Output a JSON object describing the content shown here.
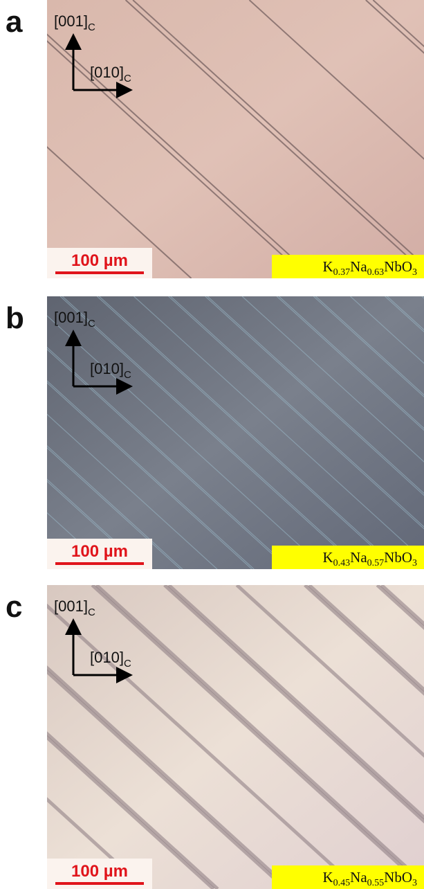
{
  "panels": [
    {
      "label": "a",
      "axis_vertical": "[001]",
      "axis_vertical_sub": "C",
      "axis_horizontal": "[010]",
      "axis_horizontal_sub": "C",
      "scale_bar": "100 µm",
      "formula": [
        "K",
        "0.37",
        "Na",
        "0.63",
        "NbO",
        "3"
      ]
    },
    {
      "label": "b",
      "axis_vertical": "[001]",
      "axis_vertical_sub": "C",
      "axis_horizontal": "[010]",
      "axis_horizontal_sub": "C",
      "scale_bar": "100 µm",
      "formula": [
        "K",
        "0.43",
        "Na",
        "0.57",
        "NbO",
        "3"
      ]
    },
    {
      "label": "c",
      "axis_vertical": "[001]",
      "axis_vertical_sub": "C",
      "axis_horizontal": "[010]",
      "axis_horizontal_sub": "C",
      "scale_bar": "100 µm",
      "formula": [
        "K",
        "0.45",
        "Na",
        "0.55",
        "NbO",
        "3"
      ]
    }
  ]
}
